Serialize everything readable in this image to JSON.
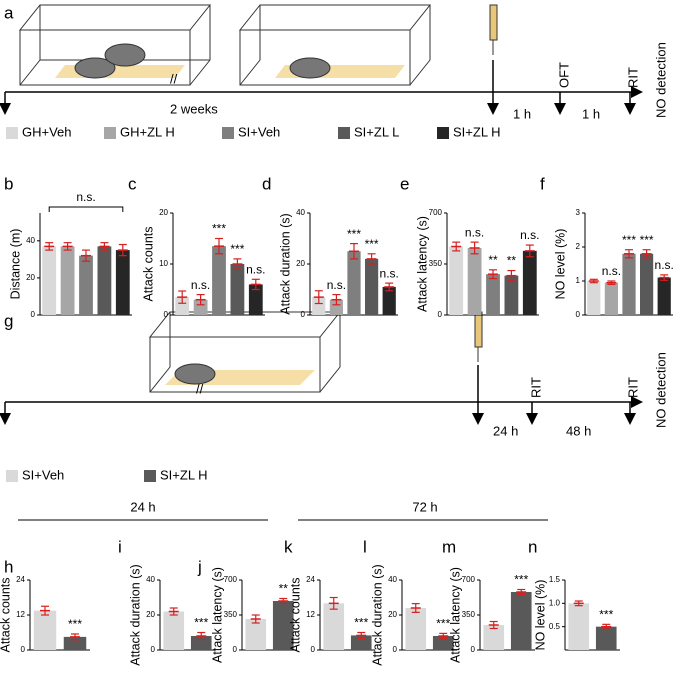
{
  "panels": {
    "a": "a",
    "b": "b",
    "c": "c",
    "d": "d",
    "e": "e",
    "f": "f",
    "g": "g",
    "h": "h",
    "i": "i",
    "j": "j",
    "k": "k",
    "l": "l",
    "m": "m",
    "n": "n"
  },
  "timeline_a": {
    "gap": "//",
    "gap_label": "2 weeks",
    "interval_1": "1 h",
    "interval_2": "1 h",
    "event_1": "OFT",
    "event_2": "RIT",
    "event_3": "NO detection"
  },
  "legend_top": [
    {
      "name": "GH+Veh",
      "color": "#d9d9d9"
    },
    {
      "name": "GH+ZL H",
      "color": "#a6a6a6"
    },
    {
      "name": "SI+Veh",
      "color": "#7f7f7f"
    },
    {
      "name": "SI+ZL L",
      "color": "#595959"
    },
    {
      "name": "SI+ZL H",
      "color": "#262626"
    }
  ],
  "timeline_g": {
    "gap": "//",
    "interval_1": "24 h",
    "interval_2": "48 h",
    "event_1": "RIT",
    "event_2": "RIT",
    "event_3": "NO detection"
  },
  "legend_bottom": [
    {
      "name": "SI+Veh",
      "color": "#d9d9d9"
    },
    {
      "name": "SI+ZL H",
      "color": "#595959"
    }
  ],
  "group_headings": [
    "24 h",
    "72 h"
  ],
  "chart_data": [
    {
      "type": "bar",
      "ylabel": "Distance (m)",
      "ylim": [
        0,
        55
      ],
      "yticks": [
        0,
        20,
        40
      ],
      "values": [
        37,
        37,
        32,
        37,
        35
      ],
      "errors": [
        2,
        2,
        3,
        2,
        3
      ],
      "colors": [
        "#d9d9d9",
        "#a6a6a6",
        "#7f7f7f",
        "#595959",
        "#262626"
      ],
      "annotations": [
        null,
        null,
        null,
        null,
        null
      ],
      "bracket_label": "n.s."
    },
    {
      "type": "bar",
      "ylabel": "Attack counts",
      "ylim": [
        0,
        20
      ],
      "yticks": [
        0,
        10,
        20
      ],
      "values": [
        3.5,
        3,
        13.5,
        10,
        6
      ],
      "errors": [
        1.2,
        1,
        1.5,
        1,
        1
      ],
      "colors": [
        "#d9d9d9",
        "#a6a6a6",
        "#7f7f7f",
        "#595959",
        "#262626"
      ],
      "annotations": [
        null,
        "n.s.",
        "***",
        "***",
        "n.s."
      ]
    },
    {
      "type": "bar",
      "ylabel": "Attack duration (s)",
      "ylim": [
        0,
        40
      ],
      "yticks": [
        0,
        20,
        40
      ],
      "values": [
        7,
        6,
        25,
        22,
        11
      ],
      "errors": [
        2.5,
        2,
        3,
        2,
        1.5
      ],
      "colors": [
        "#d9d9d9",
        "#a6a6a6",
        "#7f7f7f",
        "#595959",
        "#262626"
      ],
      "annotations": [
        null,
        "n.s.",
        "***",
        "***",
        "n.s."
      ]
    },
    {
      "type": "bar",
      "ylabel": "Attack latency (s)",
      "ylim": [
        0,
        700
      ],
      "yticks": [
        0,
        350,
        700
      ],
      "values": [
        470,
        460,
        280,
        270,
        440
      ],
      "errors": [
        30,
        40,
        30,
        35,
        40
      ],
      "colors": [
        "#d9d9d9",
        "#a6a6a6",
        "#7f7f7f",
        "#595959",
        "#262626"
      ],
      "annotations": [
        null,
        "n.s.",
        "**",
        "**",
        "n.s."
      ]
    },
    {
      "type": "bar",
      "ylabel": "NO level (%)",
      "ylim": [
        0,
        3
      ],
      "yticks": [
        0,
        1,
        2,
        3
      ],
      "values": [
        1.0,
        0.95,
        1.8,
        1.8,
        1.1
      ],
      "errors": [
        0.05,
        0.05,
        0.12,
        0.12,
        0.08
      ],
      "colors": [
        "#d9d9d9",
        "#a6a6a6",
        "#7f7f7f",
        "#595959",
        "#262626"
      ],
      "annotations": [
        null,
        "n.s.",
        "***",
        "***",
        "n.s."
      ]
    },
    {
      "type": "bar",
      "ylabel": "Attack counts",
      "ylim": [
        0,
        24
      ],
      "yticks": [
        0,
        12,
        24
      ],
      "values": [
        13.5,
        4.5
      ],
      "errors": [
        1.5,
        1
      ],
      "colors": [
        "#d9d9d9",
        "#595959"
      ],
      "annotations": [
        null,
        "***"
      ]
    },
    {
      "type": "bar",
      "ylabel": "Attack duration (s)",
      "ylim": [
        0,
        40
      ],
      "yticks": [
        0,
        20,
        40
      ],
      "values": [
        22,
        8
      ],
      "errors": [
        2,
        2
      ],
      "colors": [
        "#d9d9d9",
        "#595959"
      ],
      "annotations": [
        null,
        "***"
      ]
    },
    {
      "type": "bar",
      "ylabel": "Attack latency (s)",
      "ylim": [
        0,
        700
      ],
      "yticks": [
        0,
        350,
        700
      ],
      "values": [
        310,
        490
      ],
      "errors": [
        40,
        25
      ],
      "colors": [
        "#d9d9d9",
        "#595959"
      ],
      "annotations": [
        null,
        "**"
      ]
    },
    {
      "type": "bar",
      "ylabel": "Attack counts",
      "ylim": [
        0,
        24
      ],
      "yticks": [
        0,
        12,
        24
      ],
      "values": [
        16,
        5
      ],
      "errors": [
        2,
        1
      ],
      "colors": [
        "#d9d9d9",
        "#595959"
      ],
      "annotations": [
        null,
        "***"
      ]
    },
    {
      "type": "bar",
      "ylabel": "Attack duration (s)",
      "ylim": [
        0,
        40
      ],
      "yticks": [
        0,
        20,
        40
      ],
      "values": [
        24,
        8
      ],
      "errors": [
        2.5,
        1.5
      ],
      "colors": [
        "#d9d9d9",
        "#595959"
      ],
      "annotations": [
        null,
        "***"
      ]
    },
    {
      "type": "bar",
      "ylabel": "Attack latency (s)",
      "ylim": [
        0,
        700
      ],
      "yticks": [
        0,
        350,
        700
      ],
      "values": [
        250,
        580
      ],
      "errors": [
        35,
        25
      ],
      "colors": [
        "#d9d9d9",
        "#595959"
      ],
      "annotations": [
        null,
        "***"
      ]
    },
    {
      "type": "bar",
      "ylabel": "NO level (%)",
      "ylim": [
        0,
        1.5
      ],
      "yticks": [
        0.5,
        {
          "value": 1,
          "label": "1.0"
        },
        1.5
      ],
      "values": [
        1.0,
        0.5
      ],
      "errors": [
        0.05,
        0.05
      ],
      "colors": [
        "#d9d9d9",
        "#595959"
      ],
      "annotations": [
        null,
        "***"
      ]
    }
  ]
}
